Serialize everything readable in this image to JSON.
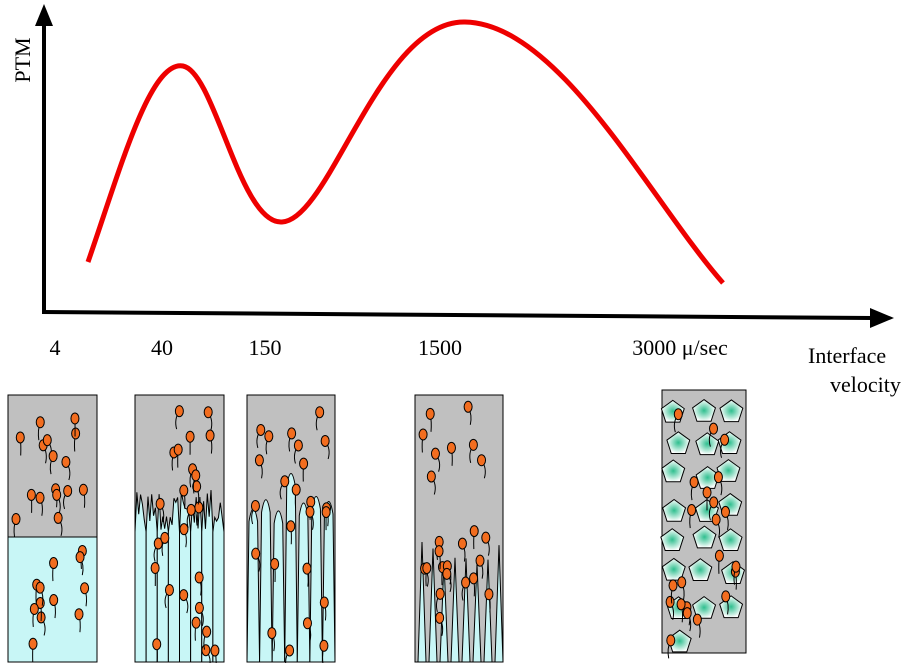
{
  "y_axis_label": "PTM",
  "x_axis_label": [
    "Interface",
    "velocity"
  ],
  "x_labels": [
    "4",
    "40",
    "150",
    "1500",
    "3000 μ/sec"
  ]
}
